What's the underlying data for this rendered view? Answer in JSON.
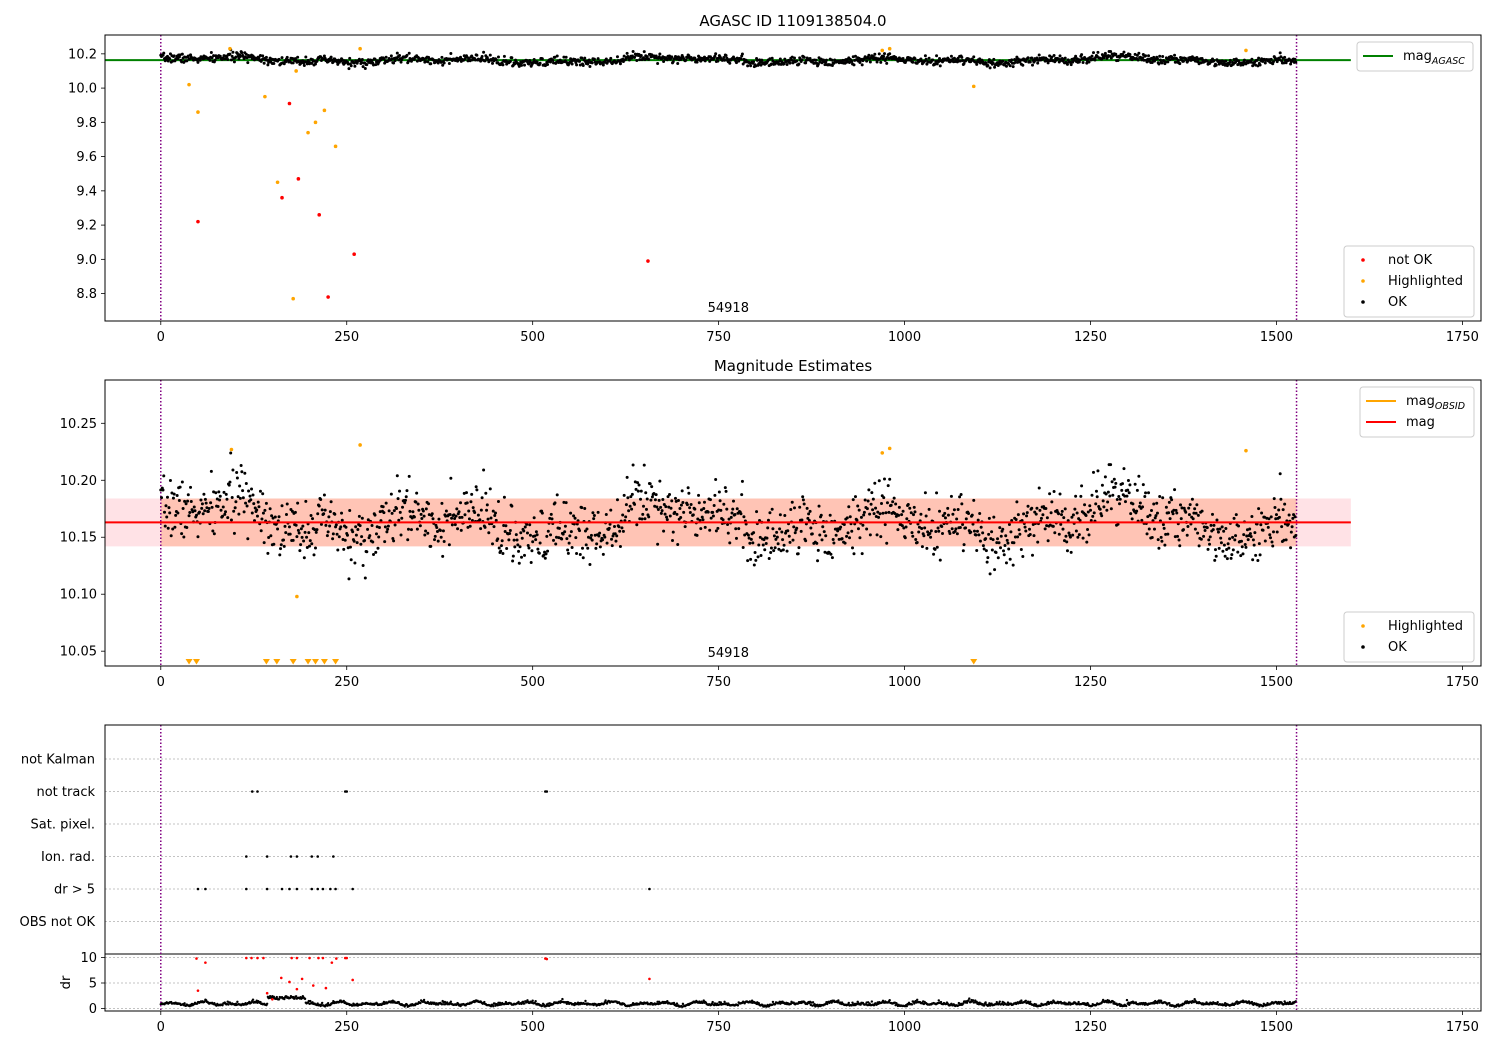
{
  "colors": {
    "ok": "#000000",
    "highlighted": "#ffa500",
    "not_ok": "#ff0000",
    "mag_agasc": "#008000",
    "mag_obsid": "#ffa500",
    "mag": "#ff0000",
    "band_outer": "#ffb6c1",
    "band_inner": "#ffa07a",
    "obs_boundary": "#800080",
    "grid": "#b0b0b0"
  },
  "chart_data": [
    {
      "type": "scatter",
      "title": "AGASC ID 1109138504.0",
      "xlim": [
        -75,
        1775
      ],
      "ylim": [
        8.64,
        10.31
      ],
      "xticks": [
        0,
        250,
        500,
        750,
        1000,
        1250,
        1500,
        1750
      ],
      "xtick_labels": [
        "0",
        "250",
        "500",
        "750",
        "1000",
        "1250",
        "1500",
        "1750"
      ],
      "yticks": [
        8.8,
        9.0,
        9.2,
        9.4,
        9.6,
        9.8,
        10.0,
        10.2
      ],
      "ytick_labels": [
        "8.8",
        "9.0",
        "9.2",
        "9.4",
        "9.6",
        "9.8",
        "10.0",
        "10.2"
      ],
      "obs_boundaries": [
        0,
        1527
      ],
      "obs_label": {
        "text": "54918",
        "x": 763
      },
      "mag_agasc": {
        "value": 10.163,
        "x_range": [
          -75,
          1600
        ]
      },
      "legend_lines": [
        {
          "label": "mag",
          "sub": "AGASC",
          "color": "#008000"
        }
      ],
      "legend_points": [
        {
          "label": "not OK",
          "color": "#ff0000"
        },
        {
          "label": "Highlighted",
          "color": "#ffa500"
        },
        {
          "label": "OK",
          "color": "#000000"
        }
      ],
      "ok_series": {
        "n": 1527,
        "baseline": 10.163,
        "sigma": 0.017
      },
      "highlighted_points": [
        [
          38,
          10.02
        ],
        [
          50,
          9.86
        ],
        [
          93,
          10.23
        ],
        [
          140,
          9.95
        ],
        [
          157,
          9.45
        ],
        [
          178,
          8.77
        ],
        [
          182,
          10.1
        ],
        [
          198,
          9.74
        ],
        [
          208,
          9.8
        ],
        [
          220,
          9.87
        ],
        [
          235,
          9.66
        ],
        [
          268,
          10.23
        ],
        [
          970,
          10.22
        ],
        [
          980,
          10.23
        ],
        [
          1093,
          10.01
        ],
        [
          1459,
          10.22
        ]
      ],
      "not_ok_points": [
        [
          50,
          9.22
        ],
        [
          163,
          9.36
        ],
        [
          173,
          9.91
        ],
        [
          185,
          9.47
        ],
        [
          213,
          9.26
        ],
        [
          225,
          8.78
        ],
        [
          260,
          9.03
        ],
        [
          655,
          8.99
        ]
      ]
    },
    {
      "type": "scatter",
      "title": "Magnitude Estimates",
      "xlim": [
        -75,
        1775
      ],
      "ylim": [
        10.037,
        10.288
      ],
      "xticks": [
        0,
        250,
        500,
        750,
        1000,
        1250,
        1500,
        1750
      ],
      "xtick_labels": [
        "0",
        "250",
        "500",
        "750",
        "1000",
        "1250",
        "1500",
        "1750"
      ],
      "yticks": [
        10.05,
        10.1,
        10.15,
        10.2,
        10.25
      ],
      "ytick_labels": [
        "10.05",
        "10.10",
        "10.15",
        "10.20",
        "10.25"
      ],
      "obs_boundaries": [
        0,
        1527
      ],
      "obs_label": {
        "text": "54918",
        "x": 763
      },
      "mag": {
        "value": 10.163,
        "x_range": [
          -75,
          1600
        ],
        "band": [
          10.142,
          10.184
        ]
      },
      "mag_obsid": {
        "value": 10.163,
        "x_range": [
          0,
          1527
        ]
      },
      "legend_lines": [
        {
          "label": "mag",
          "sub": "OBSID",
          "color": "#ffa500"
        },
        {
          "label": "mag",
          "sub": "",
          "color": "#ff0000"
        }
      ],
      "legend_points": [
        {
          "label": "Highlighted",
          "color": "#ffa500"
        },
        {
          "label": "OK",
          "color": "#000000"
        }
      ],
      "ok_series": {
        "n": 1527,
        "baseline": 10.163,
        "sigma": 0.017
      },
      "highlighted_points": [
        [
          95,
          10.227
        ],
        [
          268,
          10.231
        ],
        [
          970,
          10.224
        ],
        [
          980,
          10.228
        ],
        [
          183,
          10.098
        ],
        [
          1459,
          10.226
        ]
      ],
      "offscale_markers": [
        38,
        48,
        142,
        156,
        178,
        198,
        208,
        220,
        235,
        1093
      ]
    },
    {
      "type": "scatter",
      "title": "",
      "xlim": [
        -75,
        1775
      ],
      "xticks": [
        0,
        250,
        500,
        750,
        1000,
        1250,
        1500,
        1750
      ],
      "xtick_labels": [
        "0",
        "250",
        "500",
        "750",
        "1000",
        "1250",
        "1500",
        "1750"
      ],
      "obs_boundaries": [
        0,
        1527
      ],
      "flag_categories": [
        "not Kalman",
        "not track",
        "Sat. pixel.",
        "Ion. rad.",
        "dr > 5",
        "OBS not OK"
      ],
      "flag_points": {
        "not Kalman": [],
        "not track": [
          123,
          130,
          248,
          250,
          517,
          519
        ],
        "Sat. pixel.": [],
        "Ion. rad.": [
          115,
          143,
          175,
          183,
          203,
          211,
          232
        ],
        "dr > 5": [
          50,
          60,
          115,
          143,
          163,
          173,
          183,
          203,
          211,
          218,
          228,
          235,
          258,
          657
        ],
        "OBS not OK": []
      },
      "dr_ylabel": "dr",
      "dr_ylim": [
        -0.3,
        10.3
      ],
      "dr_yticks": [
        0,
        5,
        10
      ],
      "dr_ytick_labels": [
        "0",
        "5",
        "10"
      ],
      "dr_red_points": [
        [
          50,
          3.5
        ],
        [
          48,
          9.8
        ],
        [
          60,
          9
        ],
        [
          115,
          9.9
        ],
        [
          122,
          9.9
        ],
        [
          130,
          9.9
        ],
        [
          138,
          9.9
        ],
        [
          143,
          3
        ],
        [
          150,
          1.8
        ],
        [
          162,
          6
        ],
        [
          173,
          5.2
        ],
        [
          176,
          9.9
        ],
        [
          183,
          9.9
        ],
        [
          183,
          3.8
        ],
        [
          190,
          5.8
        ],
        [
          200,
          9.9
        ],
        [
          205,
          4.5
        ],
        [
          212,
          9.9
        ],
        [
          218,
          9.9
        ],
        [
          222,
          4
        ],
        [
          230,
          9
        ],
        [
          236,
          9.8
        ],
        [
          248,
          9.9
        ],
        [
          250,
          9.9
        ],
        [
          258,
          5.6
        ],
        [
          517,
          9.8
        ],
        [
          519,
          9.7
        ],
        [
          657,
          5.8
        ]
      ]
    }
  ]
}
